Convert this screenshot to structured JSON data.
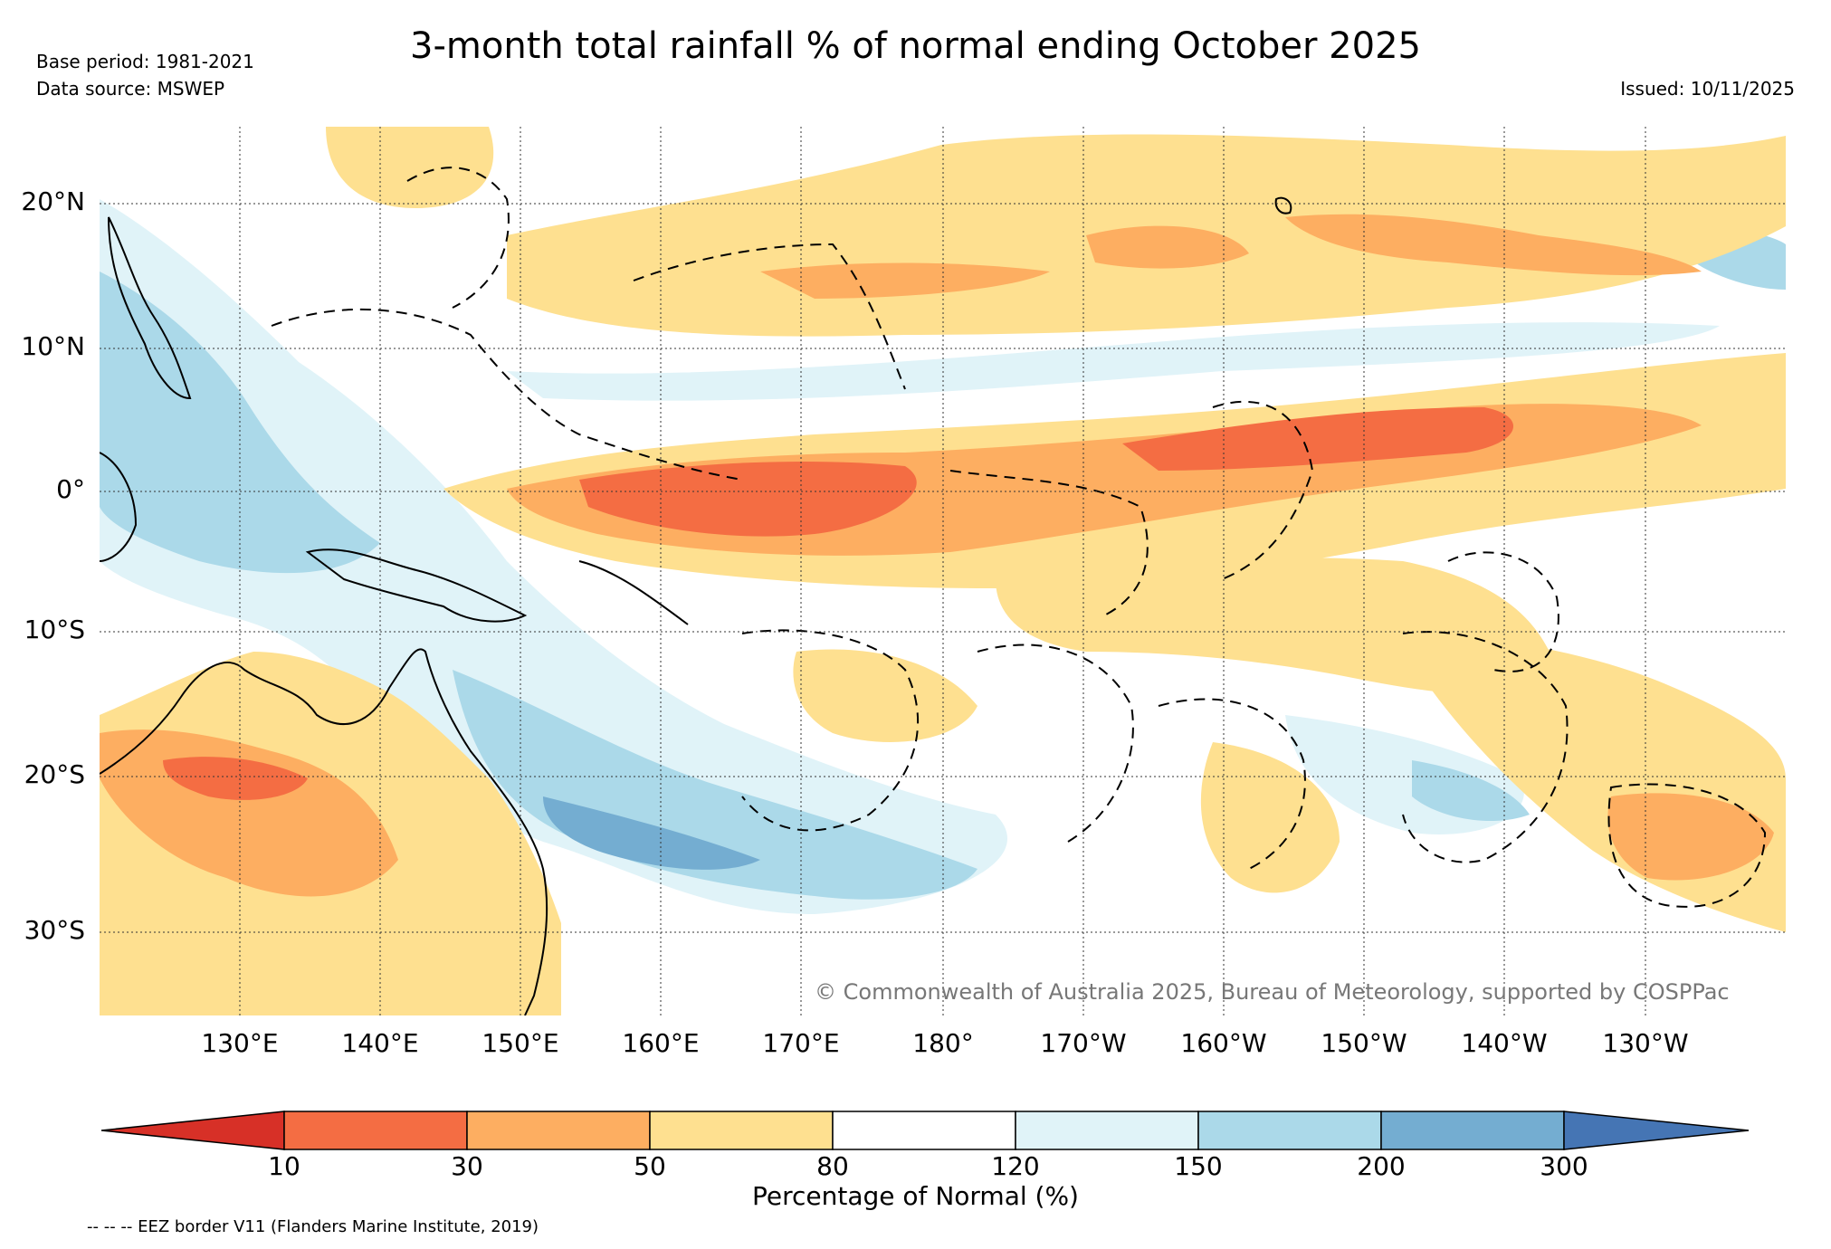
{
  "header": {
    "title": "3-month total rainfall % of normal ending October 2025",
    "base_period": "Base period: 1981-2021",
    "data_source": "Data source: MSWEP",
    "issued": "Issued: 10/11/2025"
  },
  "map": {
    "lat_labels": [
      "20°N",
      "10°N",
      "0°",
      "10°S",
      "20°S",
      "30°S"
    ],
    "lon_labels": [
      "130°E",
      "140°E",
      "150°E",
      "160°E",
      "170°E",
      "180°",
      "170°W",
      "160°W",
      "150°W",
      "140°W",
      "130°W"
    ],
    "copyright": "© Commonwealth of Australia 2025, Bureau of Meteorology, supported by COSPPac",
    "ocean_color": "#ffffff"
  },
  "legend": {
    "title": "Percentage of Normal (%)",
    "ticks": [
      "10",
      "30",
      "50",
      "80",
      "120",
      "150",
      "200",
      "300"
    ],
    "colors": [
      "#d73027",
      "#f46d43",
      "#fdae61",
      "#fee090",
      "#ffffff",
      "#e0f3f8",
      "#abd9e9",
      "#74add1",
      "#4575b4"
    ]
  },
  "footnote": "-- -- -- EEZ border V11 (Flanders Marine Institute, 2019)"
}
